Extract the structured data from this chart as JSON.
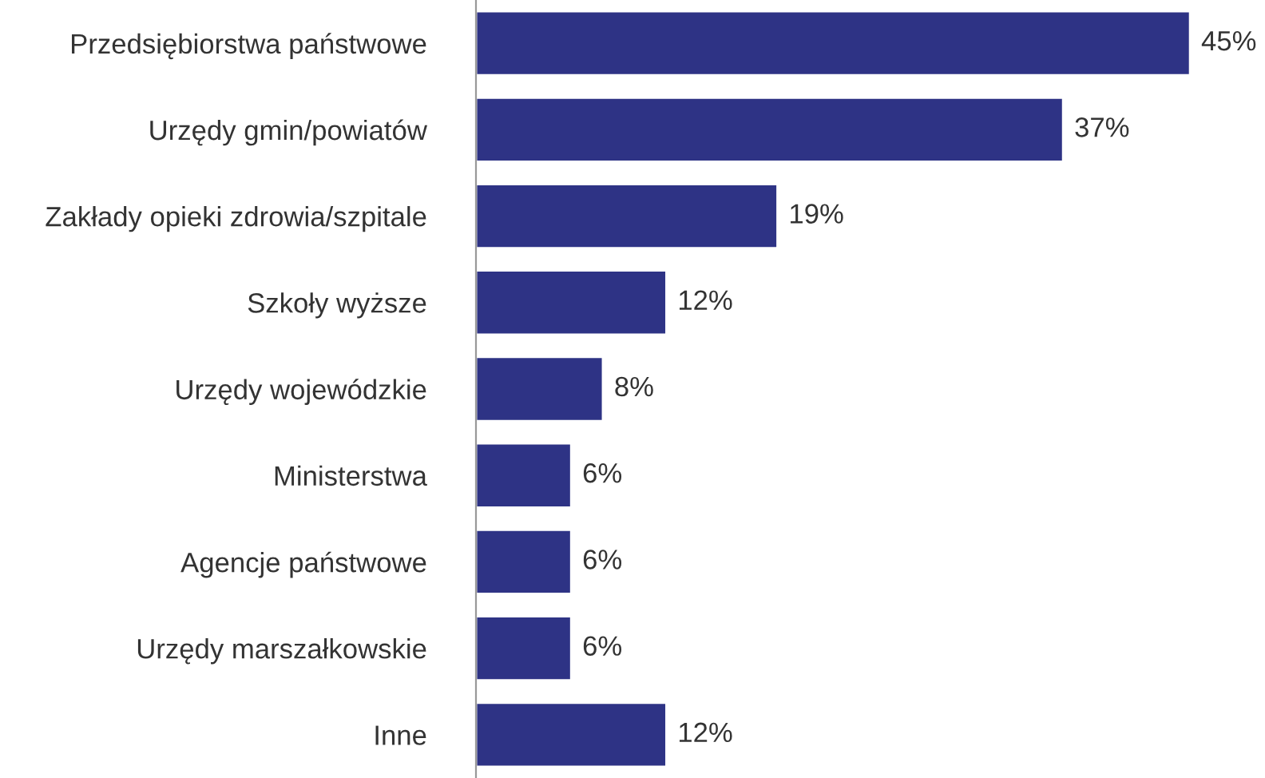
{
  "chart_data": {
    "type": "bar",
    "orientation": "horizontal",
    "categories": [
      "Przedsiębiorstwa państwowe",
      "Urzędy gmin/powiatów",
      "Zakłady opieki zdrowia/szpitale",
      "Szkoły wyższe",
      "Urzędy wojewódzkie",
      "Ministerstwa",
      "Agencje państwowe",
      "Urzędy marszałkowskie",
      "Inne"
    ],
    "values": [
      45,
      37,
      19,
      12,
      8,
      6,
      6,
      6,
      12
    ],
    "value_labels": [
      "45%",
      "37%",
      "19%",
      "12%",
      "8%",
      "6%",
      "6%",
      "6%",
      "12%"
    ],
    "color": "#2e3385",
    "grid": false,
    "legend": false
  }
}
